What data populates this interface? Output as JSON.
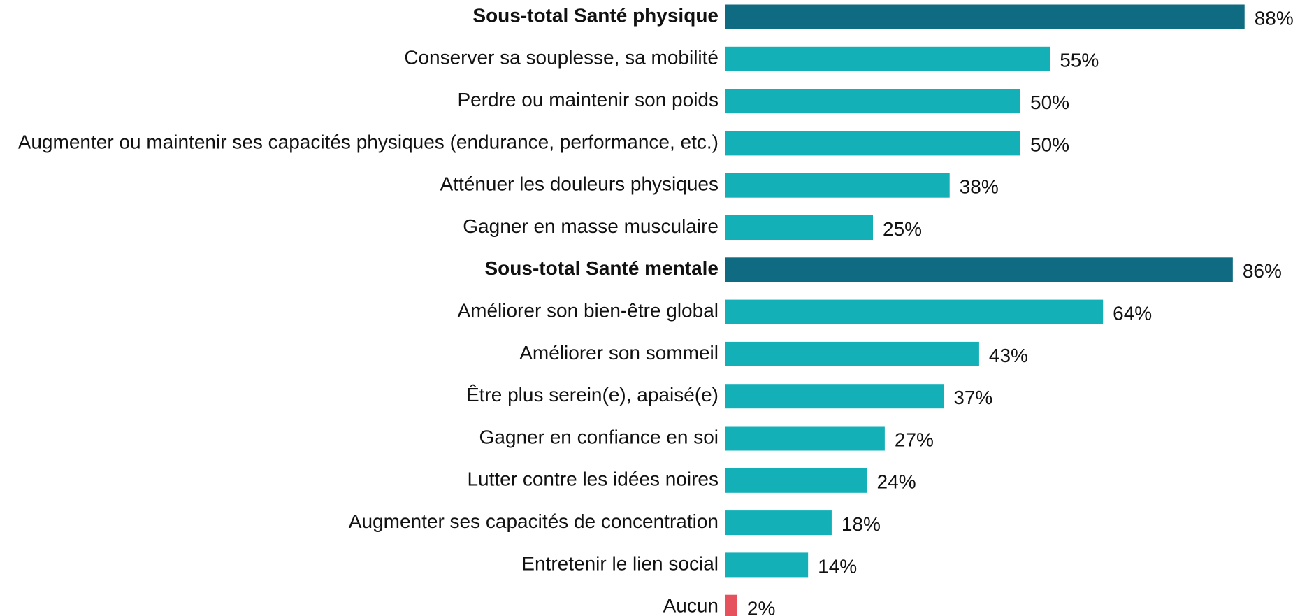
{
  "chart_data": {
    "type": "bar",
    "orientation": "horizontal",
    "categories": [
      "Sous-total Santé physique",
      "Conserver sa souplesse, sa mobilité",
      "Perdre ou maintenir son poids",
      "Augmenter ou maintenir ses capacités physiques (endurance, performance, etc.)",
      "Atténuer les douleurs physiques",
      "Gagner en masse musculaire",
      "Sous-total Santé mentale",
      "Améliorer son bien-être global",
      "Améliorer son sommeil",
      "Être plus serein(e), apaisé(e)",
      "Gagner en confiance en soi",
      "Lutter contre les idées noires",
      "Augmenter ses capacités de concentration",
      "Entretenir le lien social",
      "Aucun"
    ],
    "values": [
      88,
      55,
      50,
      50,
      38,
      25,
      86,
      64,
      43,
      37,
      27,
      24,
      18,
      14,
      2
    ],
    "value_labels": [
      "88%",
      "55%",
      "50%",
      "50%",
      "38%",
      "25%",
      "86%",
      "64%",
      "43%",
      "37%",
      "27%",
      "24%",
      "18%",
      "14%",
      "2%"
    ],
    "colors": [
      "#0e6b82",
      "#13b0b8",
      "#13b0b8",
      "#13b0b8",
      "#13b0b8",
      "#13b0b8",
      "#0e6b82",
      "#13b0b8",
      "#13b0b8",
      "#13b0b8",
      "#13b0b8",
      "#13b0b8",
      "#13b0b8",
      "#13b0b8",
      "#e5515c"
    ],
    "bold": [
      true,
      false,
      false,
      false,
      false,
      false,
      true,
      false,
      false,
      false,
      false,
      false,
      false,
      false,
      false
    ],
    "xlim": [
      0,
      100
    ]
  }
}
